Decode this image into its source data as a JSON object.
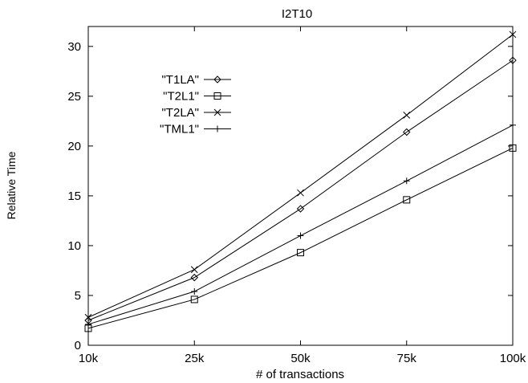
{
  "chart_data": {
    "type": "line",
    "title": "I2T10",
    "xlabel": "# of transactions",
    "ylabel": "Relative Time",
    "categories": [
      "10k",
      "25k",
      "50k",
      "75k",
      "100k"
    ],
    "ylim": [
      0,
      32
    ],
    "yticks": [
      0,
      5,
      10,
      15,
      20,
      25,
      30
    ],
    "grid": false,
    "legend_position": "upper-left inside plot",
    "series": [
      {
        "name": "\"T1LA\"",
        "marker": "diamond",
        "values": [
          2.5,
          6.8,
          13.7,
          21.4,
          28.6
        ]
      },
      {
        "name": "\"T2L1\"",
        "marker": "square",
        "values": [
          1.7,
          4.6,
          9.3,
          14.6,
          19.8
        ]
      },
      {
        "name": "\"T2LA\"",
        "marker": "x",
        "values": [
          2.8,
          7.6,
          15.3,
          23.1,
          31.2
        ]
      },
      {
        "name": "\"TML1\"",
        "marker": "plus",
        "values": [
          2.1,
          5.4,
          11.0,
          16.5,
          22.1
        ]
      }
    ]
  }
}
